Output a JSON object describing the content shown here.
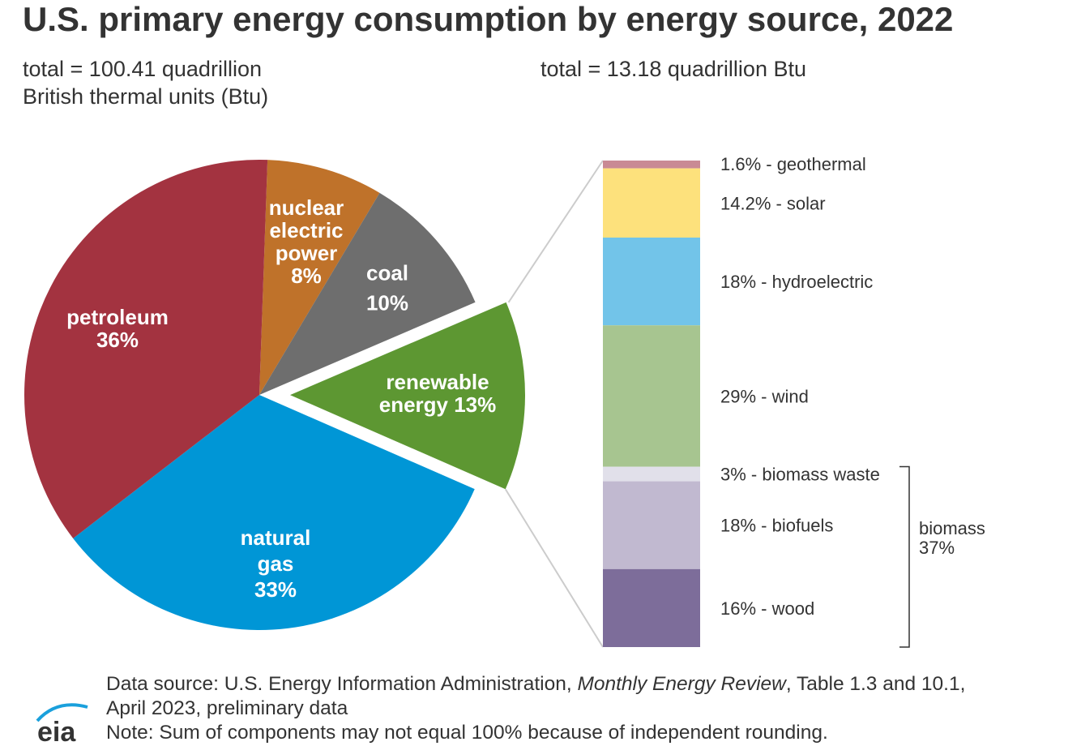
{
  "chart_data": [
    {
      "type": "pie",
      "title": "U.S. primary energy consumption by energy source, 2022",
      "subtitle": "total = 100.41 quadrillion British thermal units (Btu)",
      "subtitle_lines": [
        "total = 100.41 quadrillion",
        "British thermal units (Btu)"
      ],
      "slices": [
        {
          "label_lines": [
            "nuclear",
            "electric",
            "power",
            "8%"
          ],
          "value": 8,
          "color": "#bf722a"
        },
        {
          "label_lines": [
            "coal",
            "10%"
          ],
          "value": 10,
          "color": "#6e6e6e"
        },
        {
          "label_lines": [
            "renewable",
            "energy 13%"
          ],
          "value": 13,
          "color": "#5d9732",
          "exploded": true
        },
        {
          "label_lines": [
            "natural",
            "gas",
            "33%"
          ],
          "value": 33,
          "color": "#0096d6"
        },
        {
          "label_lines": [
            "petroleum",
            "36%"
          ],
          "value": 36,
          "color": "#a33340"
        }
      ]
    },
    {
      "type": "bar",
      "stacked": true,
      "subtitle": "total = 13.18 quadrillion Btu",
      "segments": [
        {
          "label": "1.6% - geothermal",
          "value": 1.6,
          "color": "#c98a94"
        },
        {
          "label": "14.2% - solar",
          "value": 14.2,
          "color": "#fde17c"
        },
        {
          "label": "18% - hydroelectric",
          "value": 18,
          "color": "#72c4e9"
        },
        {
          "label": "29% - wind",
          "value": 29,
          "color": "#a7c590"
        },
        {
          "label": "3% - biomass waste",
          "value": 3,
          "color": "#e1e0ea"
        },
        {
          "label": "18% - biofuels",
          "value": 18,
          "color": "#c1b9d0"
        },
        {
          "label": "16% - wood",
          "value": 16,
          "color": "#7d6d9a"
        }
      ],
      "group_bracket": {
        "label_lines": [
          "biomass",
          "37%"
        ],
        "value": 37
      }
    }
  ],
  "footer": {
    "source_prefix": "Data source: U.S. Energy Information Administration, ",
    "source_italic": "Monthly Energy Review",
    "source_suffix": ", Table 1.3 and 10.1,",
    "source_line2": "April 2023, preliminary data",
    "note": "Note: Sum of components may not equal 100% because of independent rounding.",
    "logo_text": "eia"
  }
}
